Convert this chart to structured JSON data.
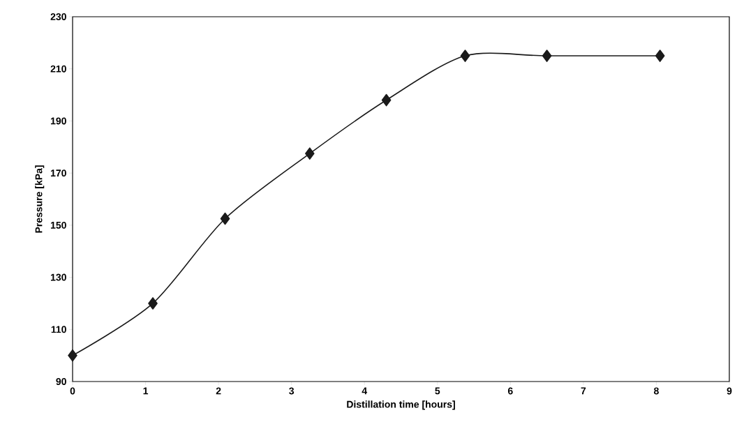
{
  "chart_data": {
    "type": "line",
    "xlabel": "Distillation time [hours]",
    "ylabel": "Pressure [kPa]",
    "x": [
      0,
      1.1,
      2.09,
      3.25,
      4.3,
      5.38,
      6.5,
      8.05
    ],
    "values": [
      100,
      120,
      152.5,
      177.5,
      198,
      215,
      215,
      215
    ],
    "color": "#1a1a1a",
    "marker": "diamond",
    "line_style": "solid",
    "xlim": [
      0,
      9
    ],
    "xticks": [
      0,
      1,
      2,
      3,
      4,
      5,
      6,
      7,
      8,
      9
    ],
    "ylim": [
      90,
      230
    ],
    "yticks": [
      90,
      110,
      130,
      150,
      170,
      190,
      210,
      230
    ]
  }
}
